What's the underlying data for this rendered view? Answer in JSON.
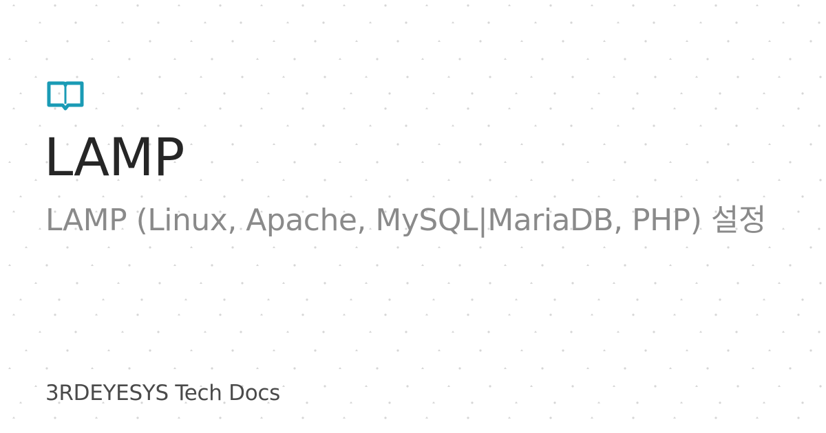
{
  "colors": {
    "background": "#ffffff",
    "accent": "#1a9bb5",
    "title": "#262626",
    "subtitle": "#8a8a8a",
    "site_name": "#4a4a4a",
    "pattern_dot": "#d6d6d6"
  },
  "icon": "book-icon",
  "title": "LAMP",
  "description": "LAMP (Linux, Apache, MySQL|MariaDB, PHP) 설정",
  "site_name": "3RDEYESYS Tech Docs"
}
